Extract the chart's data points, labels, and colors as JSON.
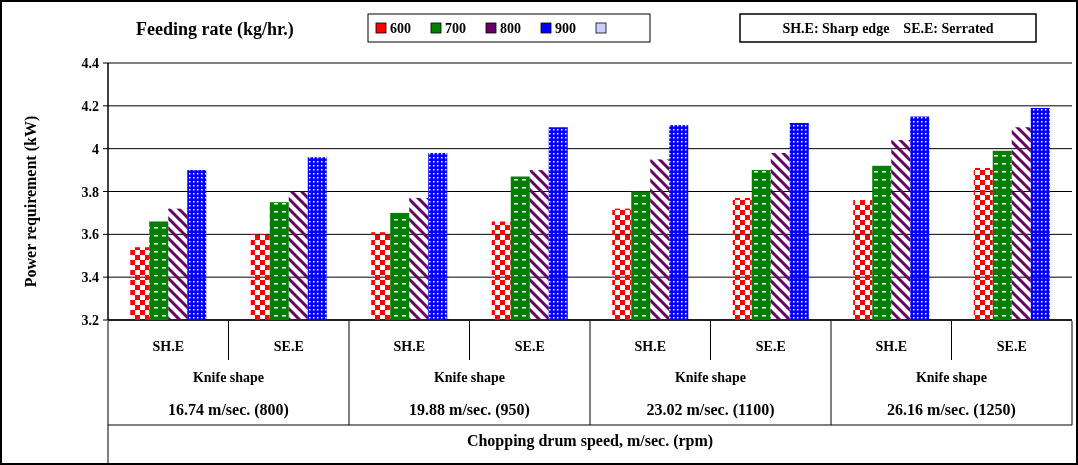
{
  "chart_data": {
    "type": "bar",
    "legend_title": "Feeding rate (kg/hr.)",
    "ylabel": "Power requirement (kW)",
    "xlabel": "Chopping drum speed, m/sec. (rpm)",
    "categories": [
      "SH.E",
      "SE.E",
      "SH.E",
      "SE.E",
      "SH.E",
      "SE.E",
      "SH.E",
      "SE.E"
    ],
    "series": [
      {
        "name": "600",
        "color": "#ff0000",
        "values": [
          3.54,
          3.6,
          3.61,
          3.66,
          3.72,
          3.77,
          3.76,
          3.91
        ]
      },
      {
        "name": "700",
        "color": "#008000",
        "values": [
          3.66,
          3.75,
          3.7,
          3.87,
          3.8,
          3.9,
          3.92,
          3.99
        ]
      },
      {
        "name": "800",
        "color": "#660066",
        "values": [
          3.72,
          3.8,
          3.77,
          3.9,
          3.95,
          3.98,
          4.04,
          4.1
        ]
      },
      {
        "name": "900",
        "color": "#0000ff",
        "values": [
          3.9,
          3.96,
          3.98,
          4.1,
          4.11,
          4.12,
          4.15,
          4.19
        ]
      }
    ],
    "ylim": [
      3.2,
      4.4
    ],
    "yticks": [
      3.2,
      3.4,
      3.6,
      3.8,
      4,
      4.2,
      4.4
    ],
    "grid": "y",
    "legend": "top",
    "annotations": [
      "Knife shape",
      "16.74 m/sec. (800)",
      "Knife shape",
      "19.88 m/sec. (950)",
      "Knife shape",
      "23.02 m/sec. (1100)",
      "Knife shape",
      "26.16 m/sec. (1250)",
      "SH.E: Sharp edge    SE.E: Serrated"
    ]
  }
}
